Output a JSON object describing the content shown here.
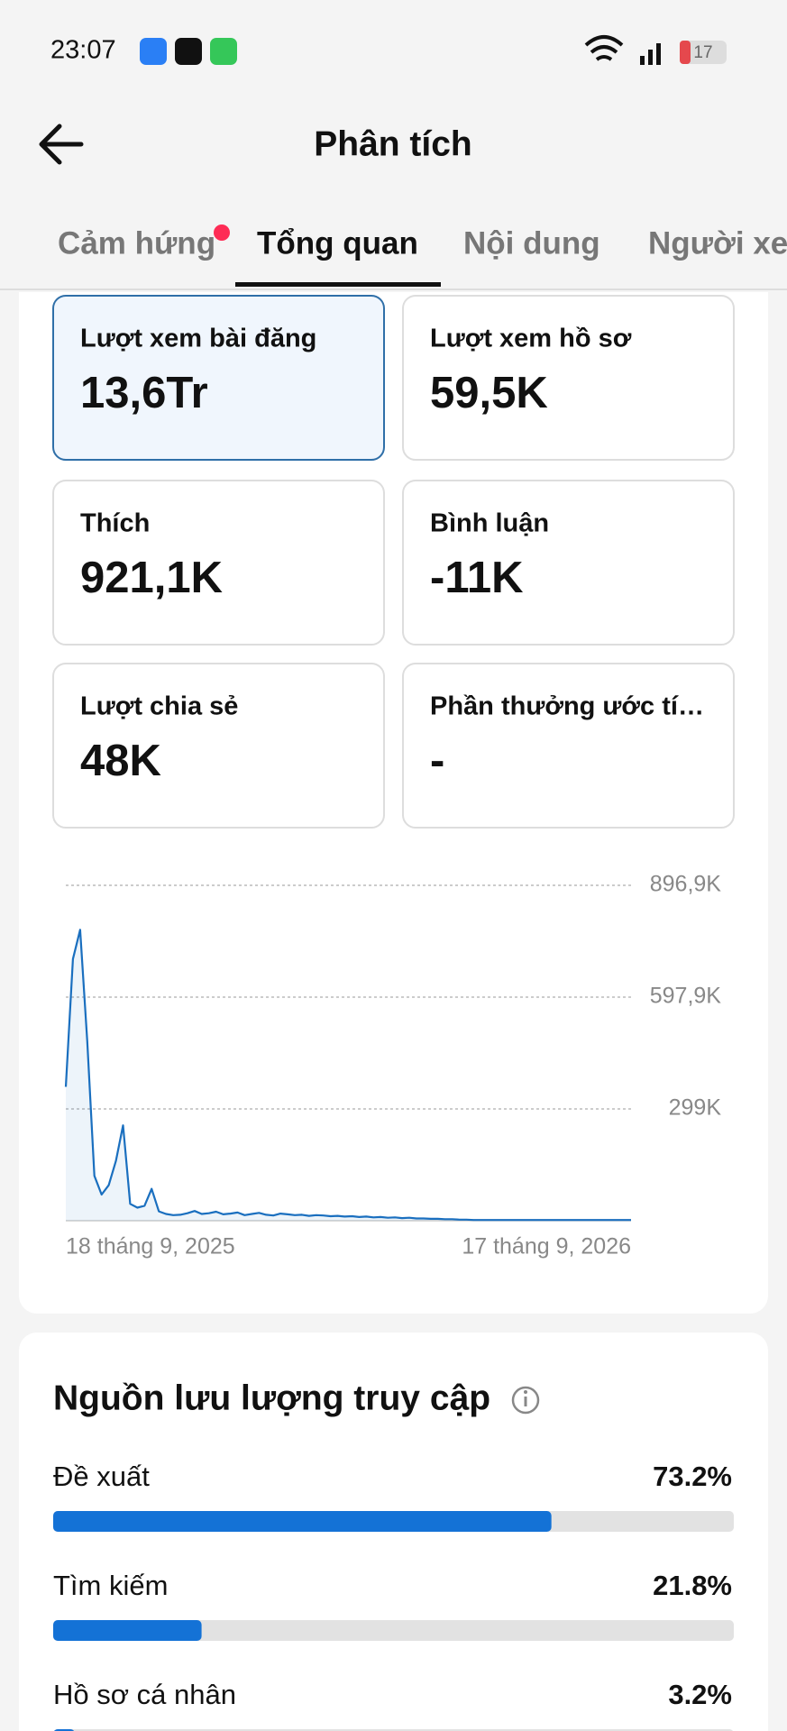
{
  "status_bar": {
    "time": "23:07",
    "battery": "17"
  },
  "header": {
    "title": "Phân tích"
  },
  "tabs": [
    "Cảm hứng",
    "Tổng quan",
    "Nội dung",
    "Người xem"
  ],
  "metrics": [
    {
      "label": "Lượt xem bài đăng",
      "value": "13,6Tr"
    },
    {
      "label": "Lượt xem hồ sơ",
      "value": "59,5K"
    },
    {
      "label": "Thích",
      "value": "921,1K"
    },
    {
      "label": "Bình luận",
      "value": "-11K"
    },
    {
      "label": "Lượt chia sẻ",
      "value": "48K"
    },
    {
      "label": "Phần thưởng ước tí…",
      "value": "-"
    }
  ],
  "chart_data": {
    "type": "line",
    "color": "#1a6fbf",
    "categories": [
      "18 tháng 9, 2025",
      null,
      null,
      null,
      null,
      null,
      null,
      null,
      null,
      null,
      null,
      null,
      null,
      null,
      null,
      null,
      null,
      null,
      null,
      null,
      null,
      null,
      null,
      null,
      null,
      null,
      null,
      null,
      null,
      null,
      null,
      null,
      null,
      null,
      null,
      null,
      null,
      null,
      null,
      null,
      null,
      null,
      null,
      null,
      null,
      null,
      null,
      null,
      null,
      null,
      null,
      null,
      null,
      null,
      null,
      null,
      null,
      null,
      null,
      null,
      null,
      null,
      null,
      null,
      null,
      null,
      null,
      null,
      null,
      null,
      null,
      null,
      null,
      null,
      null,
      null,
      null,
      null,
      null,
      "17 tháng 9, 2026"
    ],
    "values": [
      358000,
      700000,
      778000,
      480000,
      120000,
      70000,
      95000,
      160000,
      255000,
      45000,
      35000,
      40000,
      85000,
      25000,
      18000,
      15000,
      16000,
      20000,
      26000,
      18000,
      20000,
      24000,
      17000,
      19000,
      22000,
      15000,
      18000,
      21000,
      16000,
      14000,
      19000,
      17000,
      15000,
      16000,
      13000,
      15000,
      14000,
      12000,
      13000,
      11000,
      12000,
      10000,
      11000,
      9000,
      10000,
      8000,
      9000,
      7000,
      8000,
      6000,
      6000,
      5000,
      5000,
      4000,
      4000,
      3000,
      3000,
      2000,
      2000,
      2000,
      2000,
      2000,
      2000,
      2000,
      2000,
      2000,
      2000,
      2000,
      2000,
      2000,
      2000,
      2000,
      2000,
      2000,
      2000,
      2000,
      2000,
      2000,
      2000,
      2000
    ],
    "ylim": [
      0,
      896900
    ],
    "yticks": [
      {
        "value": 299000,
        "label": "299K"
      },
      {
        "value": 597900,
        "label": "597,9K"
      },
      {
        "value": 896900,
        "label": "896,9K"
      }
    ],
    "grid": true
  },
  "traffic_sources": {
    "title": "Nguồn lưu lượng truy cập",
    "color": "#1472d6",
    "items": [
      {
        "label": "Đề xuất",
        "value": 73.2,
        "value_label": "73.2%"
      },
      {
        "label": "Tìm kiếm",
        "value": 21.8,
        "value_label": "21.8%"
      },
      {
        "label": "Hồ sơ cá nhân",
        "value": 3.2,
        "value_label": "3.2%"
      }
    ]
  }
}
